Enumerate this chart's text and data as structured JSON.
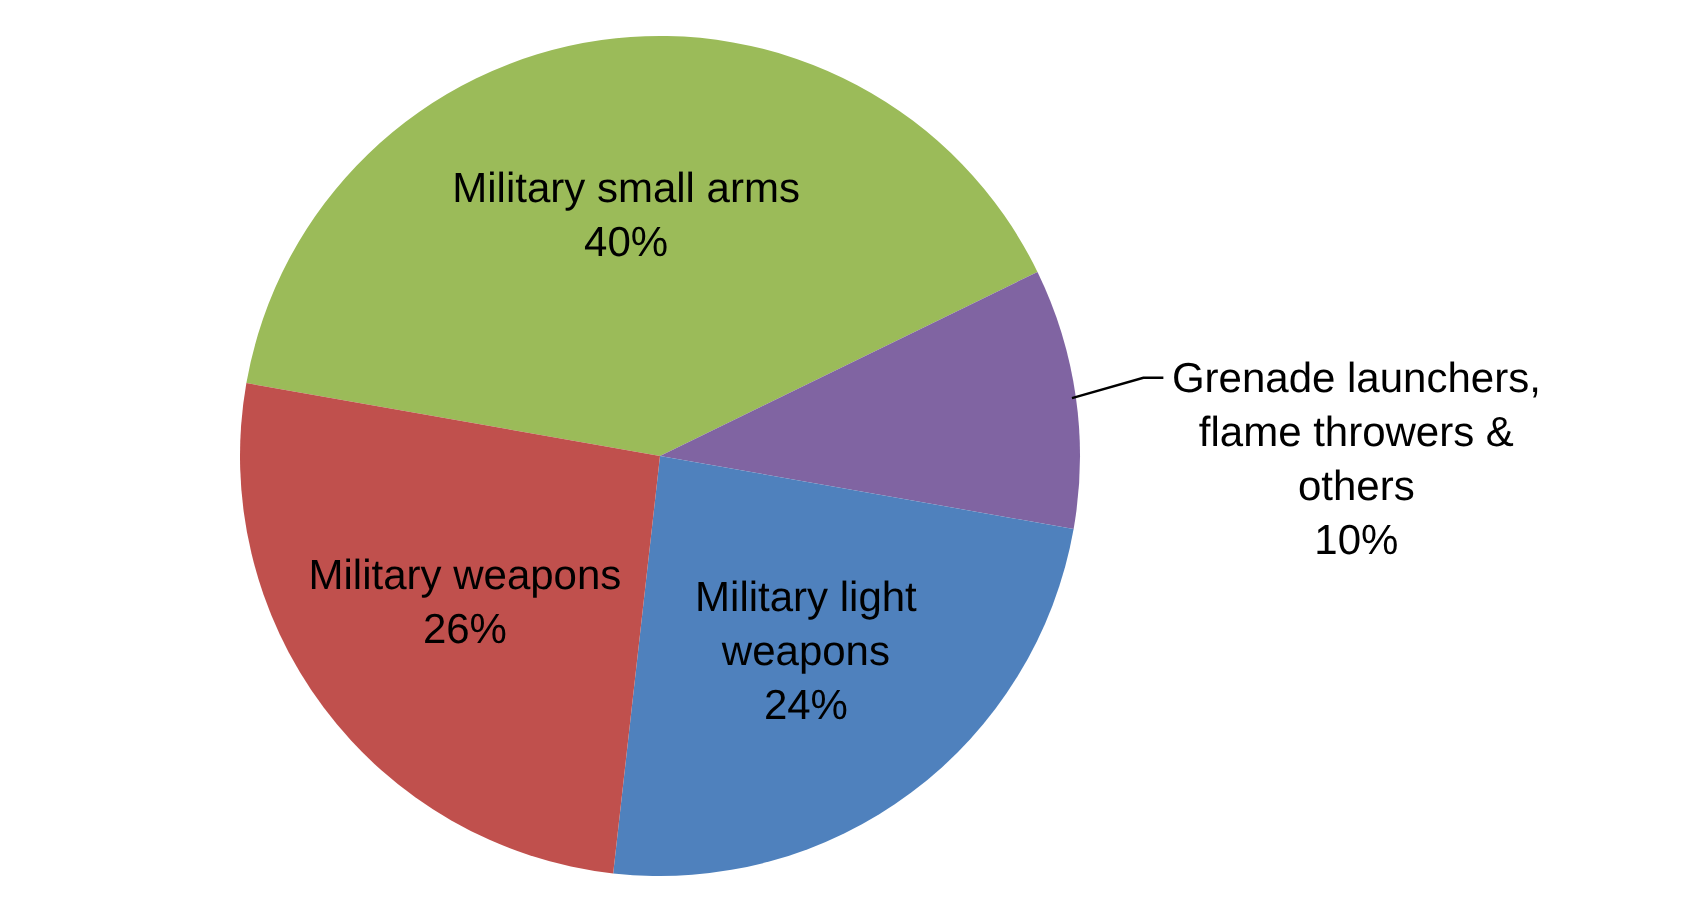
{
  "chart_data": {
    "type": "pie",
    "categories": [
      "Military small arms",
      "Grenade launchers, flame throwers & others",
      "Military light weapons",
      "Military weapons"
    ],
    "values": [
      40,
      10,
      24,
      26
    ],
    "value_labels": [
      "40%",
      "10%",
      "24%",
      "26%"
    ],
    "colors": [
      "#9bbb59",
      "#8064a2",
      "#4f81bd",
      "#c0504d"
    ]
  }
}
